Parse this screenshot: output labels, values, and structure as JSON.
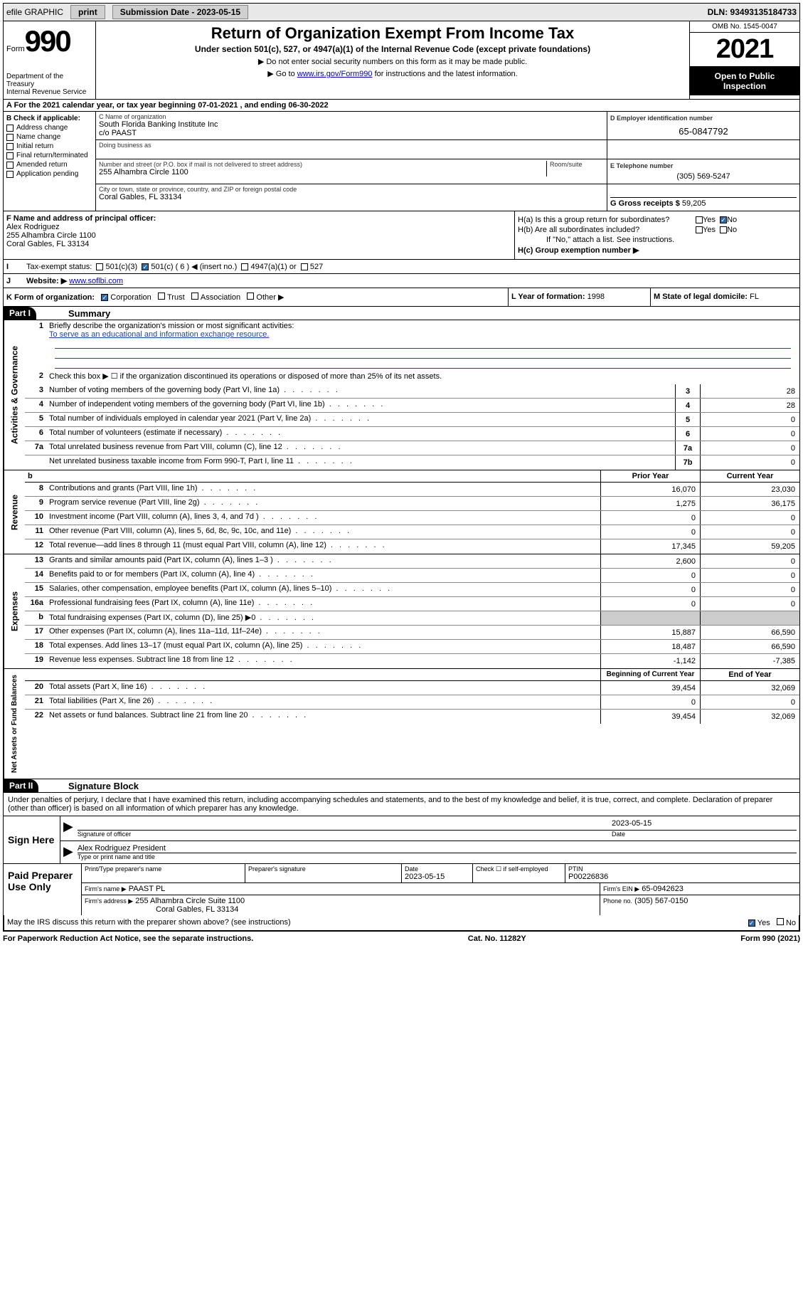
{
  "topbar": {
    "efile": "efile GRAPHIC",
    "print": "print",
    "subdate_label": "Submission Date - 2023-05-15",
    "dln": "DLN: 93493135184733"
  },
  "header": {
    "form_word": "Form",
    "form_num": "990",
    "title": "Return of Organization Exempt From Income Tax",
    "subtitle": "Under section 501(c), 527, or 4947(a)(1) of the Internal Revenue Code (except private foundations)",
    "note1": "▶ Do not enter social security numbers on this form as it may be made public.",
    "note2_pre": "▶ Go to ",
    "note2_link": "www.irs.gov/Form990",
    "note2_post": " for instructions and the latest information.",
    "dept": "Department of the Treasury",
    "irs": "Internal Revenue Service",
    "omb": "OMB No. 1545-0047",
    "year": "2021",
    "inspect": "Open to Public Inspection"
  },
  "section_a": {
    "line_a": "A For the 2021 calendar year, or tax year beginning 07-01-2021   , and ending 06-30-2022",
    "b_label": "B Check if applicable:",
    "b_items": [
      "Address change",
      "Name change",
      "Initial return",
      "Final return/terminated",
      "Amended return",
      "Application pending"
    ],
    "c_label": "C Name of organization",
    "c_name": "South Florida Banking Institute Inc",
    "c_co": "c/o PAAST",
    "dba_label": "Doing business as",
    "addr_label": "Number and street (or P.O. box if mail is not delivered to street address)",
    "room_label": "Room/suite",
    "addr": "255 Alhambra Circle 1100",
    "city_label": "City or town, state or province, country, and ZIP or foreign postal code",
    "city": "Coral Gables, FL  33134",
    "d_label": "D Employer identification number",
    "d_val": "65-0847792",
    "e_label": "E Telephone number",
    "e_val": "(305) 569-5247",
    "g_label": "G Gross receipts $",
    "g_val": "59,205",
    "f_label": "F  Name and address of principal officer:",
    "f_name": "Alex Rodriguez",
    "f_addr1": "255 Alhambra Circle 1100",
    "f_addr2": "Coral Gables, FL  33134",
    "ha_label": "H(a)  Is this a group return for subordinates?",
    "hb_label": "H(b)  Are all subordinates included?",
    "hb_note": "If \"No,\" attach a list. See instructions.",
    "hc_label": "H(c)  Group exemption number ▶",
    "i_label": "I",
    "i_text": "Tax-exempt status:",
    "i_opts": [
      "501(c)(3)",
      "501(c) ( 6 ) ◀ (insert no.)",
      "4947(a)(1) or",
      "527"
    ],
    "j_label": "J",
    "j_text": "Website: ▶",
    "j_val": "www.soflbi.com",
    "k_label": "K Form of organization:",
    "k_opts": [
      "Corporation",
      "Trust",
      "Association",
      "Other ▶"
    ],
    "l_label": "L Year of formation:",
    "l_val": "1998",
    "m_label": "M State of legal domicile:",
    "m_val": "FL",
    "yes": "Yes",
    "no": "No"
  },
  "part1": {
    "hdr": "Part I",
    "title": "Summary",
    "q1_num": "1",
    "q1": "Briefly describe the organization's mission or most significant activities:",
    "q1_mission": "To serve as an educational and information exchange resource.",
    "q2_num": "2",
    "q2": "Check this box ▶ ☐  if the organization discontinued its operations or disposed of more than 25% of its net assets."
  },
  "gov_rows": [
    {
      "n": "3",
      "t": "Number of voting members of the governing body (Part VI, line 1a)",
      "box": "3",
      "v": "28"
    },
    {
      "n": "4",
      "t": "Number of independent voting members of the governing body (Part VI, line 1b)",
      "box": "4",
      "v": "28"
    },
    {
      "n": "5",
      "t": "Total number of individuals employed in calendar year 2021 (Part V, line 2a)",
      "box": "5",
      "v": "0"
    },
    {
      "n": "6",
      "t": "Total number of volunteers (estimate if necessary)",
      "box": "6",
      "v": "0"
    },
    {
      "n": "7a",
      "t": "Total unrelated business revenue from Part VIII, column (C), line 12",
      "box": "7a",
      "v": "0"
    },
    {
      "n": "",
      "t": "Net unrelated business taxable income from Form 990-T, Part I, line 11",
      "box": "7b",
      "v": "0"
    }
  ],
  "rev_hdr": {
    "b": "b",
    "py": "Prior Year",
    "cy": "Current Year"
  },
  "rev_rows": [
    {
      "n": "8",
      "t": "Contributions and grants (Part VIII, line 1h)",
      "py": "16,070",
      "cy": "23,030"
    },
    {
      "n": "9",
      "t": "Program service revenue (Part VIII, line 2g)",
      "py": "1,275",
      "cy": "36,175"
    },
    {
      "n": "10",
      "t": "Investment income (Part VIII, column (A), lines 3, 4, and 7d )",
      "py": "0",
      "cy": "0"
    },
    {
      "n": "11",
      "t": "Other revenue (Part VIII, column (A), lines 5, 6d, 8c, 9c, 10c, and 11e)",
      "py": "0",
      "cy": "0"
    },
    {
      "n": "12",
      "t": "Total revenue—add lines 8 through 11 (must equal Part VIII, column (A), line 12)",
      "py": "17,345",
      "cy": "59,205"
    }
  ],
  "exp_rows": [
    {
      "n": "13",
      "t": "Grants and similar amounts paid (Part IX, column (A), lines 1–3 )",
      "py": "2,600",
      "cy": "0"
    },
    {
      "n": "14",
      "t": "Benefits paid to or for members (Part IX, column (A), line 4)",
      "py": "0",
      "cy": "0"
    },
    {
      "n": "15",
      "t": "Salaries, other compensation, employee benefits (Part IX, column (A), lines 5–10)",
      "py": "0",
      "cy": "0"
    },
    {
      "n": "16a",
      "t": "Professional fundraising fees (Part IX, column (A), line 11e)",
      "py": "0",
      "cy": "0"
    },
    {
      "n": "b",
      "t": "Total fundraising expenses (Part IX, column (D), line 25) ▶0",
      "py": "",
      "cy": "",
      "shaded": true
    },
    {
      "n": "17",
      "t": "Other expenses (Part IX, column (A), lines 11a–11d, 11f–24e)",
      "py": "15,887",
      "cy": "66,590"
    },
    {
      "n": "18",
      "t": "Total expenses. Add lines 13–17 (must equal Part IX, column (A), line 25)",
      "py": "18,487",
      "cy": "66,590"
    },
    {
      "n": "19",
      "t": "Revenue less expenses. Subtract line 18 from line 12",
      "py": "-1,142",
      "cy": "-7,385"
    }
  ],
  "na_hdr": {
    "py": "Beginning of Current Year",
    "cy": "End of Year"
  },
  "na_rows": [
    {
      "n": "20",
      "t": "Total assets (Part X, line 16)",
      "py": "39,454",
      "cy": "32,069"
    },
    {
      "n": "21",
      "t": "Total liabilities (Part X, line 26)",
      "py": "0",
      "cy": "0"
    },
    {
      "n": "22",
      "t": "Net assets or fund balances. Subtract line 21 from line 20",
      "py": "39,454",
      "cy": "32,069"
    }
  ],
  "vtabs": {
    "gov": "Activities & Governance",
    "rev": "Revenue",
    "exp": "Expenses",
    "na": "Net Assets or Fund Balances"
  },
  "part2": {
    "hdr": "Part II",
    "title": "Signature Block",
    "intro": "Under penalties of perjury, I declare that I have examined this return, including accompanying schedules and statements, and to the best of my knowledge and belief, it is true, correct, and complete. Declaration of preparer (other than officer) is based on all information of which preparer has any knowledge.",
    "sign_here": "Sign Here",
    "sig_of_officer": "Signature of officer",
    "sig_date_label": "Date",
    "sig_date": "2023-05-15",
    "officer_name": "Alex Rodriguez  President",
    "officer_name_label": "Type or print name and title",
    "paid_prep": "Paid Preparer Use Only",
    "prep_name_label": "Print/Type preparer's name",
    "prep_sig_label": "Preparer's signature",
    "prep_date_label": "Date",
    "prep_date": "2023-05-15",
    "prep_check_label": "Check ☐ if self-employed",
    "ptin_label": "PTIN",
    "ptin": "P00226836",
    "firm_name_label": "Firm's name      ▶",
    "firm_name": "PAAST PL",
    "firm_ein_label": "Firm's EIN ▶",
    "firm_ein": "65-0942623",
    "firm_addr_label": "Firm's address ▶",
    "firm_addr1": "255 Alhambra Circle Suite 1100",
    "firm_addr2": "Coral Gables, FL  33134",
    "firm_phone_label": "Phone no.",
    "firm_phone": "(305) 567-0150",
    "discuss": "May the IRS discuss this return with the preparer shown above? (see instructions)",
    "yes": "Yes",
    "no": "No"
  },
  "footer": {
    "pra": "For Paperwork Reduction Act Notice, see the separate instructions.",
    "cat": "Cat. No. 11282Y",
    "form": "Form 990 (2021)"
  }
}
